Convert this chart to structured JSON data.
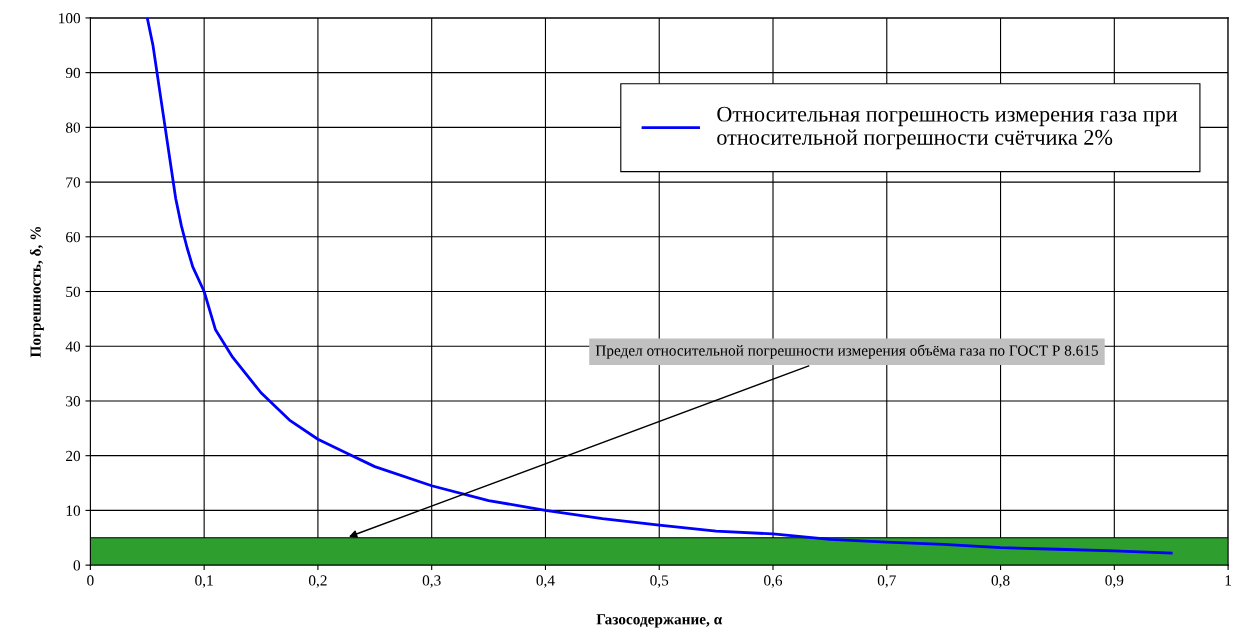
{
  "chart_data": {
    "type": "line",
    "xlabel": "Газосодержание, α",
    "ylabel": "Погрешность, δ, %",
    "xlim": [
      0,
      1
    ],
    "ylim": [
      0,
      100
    ],
    "xticks": [
      0,
      {
        "value": 0.1,
        "label": "0,1"
      },
      {
        "value": 0.2,
        "label": "0,2"
      },
      {
        "value": 0.3,
        "label": "0,3"
      },
      {
        "value": 0.4,
        "label": "0,4"
      },
      {
        "value": 0.5,
        "label": "0,5"
      },
      {
        "value": 0.6,
        "label": "0,6"
      },
      {
        "value": 0.7,
        "label": "0,7"
      },
      {
        "value": 0.8,
        "label": "0,8"
      },
      {
        "value": 0.9,
        "label": "0,9"
      },
      1
    ],
    "yticks": [
      0,
      10,
      20,
      30,
      40,
      50,
      60,
      70,
      80,
      90,
      100
    ],
    "grid": true,
    "legend": "top right",
    "marker": "none",
    "line_style": "solid",
    "series": [
      {
        "name": "Относительная погрешность измерения газа при\nотносительной погрешности счётчика 2%",
        "color": "#0000ff",
        "x": [
          0.05,
          0.055,
          0.06,
          0.065,
          0.07,
          0.075,
          0.08,
          0.085,
          0.09,
          0.1,
          0.11,
          0.125,
          0.15,
          0.175,
          0.2,
          0.225,
          0.25,
          0.3,
          0.35,
          0.4,
          0.45,
          0.5,
          0.55,
          0.6,
          0.65,
          0.7,
          0.75,
          0.8,
          0.85,
          0.9,
          0.95
        ],
        "values": [
          100,
          95,
          88,
          81,
          74,
          67,
          62,
          58,
          54.5,
          50,
          43,
          38,
          31.5,
          26.5,
          23,
          20.5,
          18,
          14.5,
          11.8,
          10,
          8.5,
          7.3,
          6.2,
          5.7,
          4.7,
          4.2,
          3.8,
          3.2,
          2.9,
          2.6,
          2.2
        ]
      }
    ],
    "bands": [
      {
        "axis": "y",
        "from": 0,
        "to": 5,
        "color": "#2e9e2e"
      }
    ],
    "annotations": [
      {
        "text": "Предел относительной погрешности измерения объёма газа по ГОСТ Р 8.615",
        "x": 0.225,
        "y": 5
      }
    ]
  }
}
